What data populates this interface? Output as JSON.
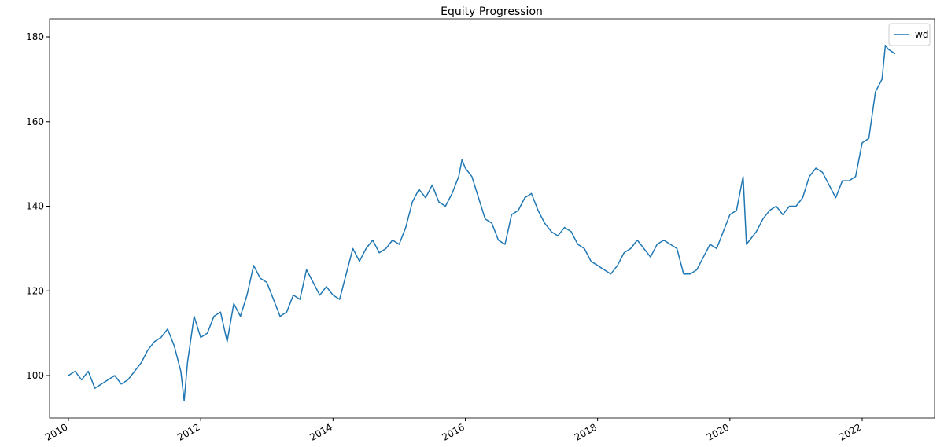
{
  "chart_data": {
    "type": "line",
    "title": "Equity Progression",
    "x": [
      2010.0,
      2010.1,
      2010.2,
      2010.3,
      2010.4,
      2010.5,
      2010.6,
      2010.7,
      2010.8,
      2010.9,
      2011.0,
      2011.1,
      2011.2,
      2011.3,
      2011.4,
      2011.5,
      2011.6,
      2011.7,
      2011.75,
      2011.8,
      2011.9,
      2012.0,
      2012.1,
      2012.2,
      2012.3,
      2012.4,
      2012.5,
      2012.6,
      2012.7,
      2012.8,
      2012.9,
      2013.0,
      2013.1,
      2013.2,
      2013.3,
      2013.4,
      2013.5,
      2013.6,
      2013.7,
      2013.8,
      2013.9,
      2014.0,
      2014.1,
      2014.2,
      2014.3,
      2014.4,
      2014.5,
      2014.6,
      2014.7,
      2014.8,
      2014.9,
      2015.0,
      2015.1,
      2015.2,
      2015.3,
      2015.4,
      2015.5,
      2015.6,
      2015.7,
      2015.8,
      2015.9,
      2015.95,
      2016.0,
      2016.1,
      2016.2,
      2016.3,
      2016.4,
      2016.5,
      2016.6,
      2016.7,
      2016.8,
      2016.9,
      2017.0,
      2017.1,
      2017.2,
      2017.3,
      2017.4,
      2017.5,
      2017.6,
      2017.7,
      2017.8,
      2017.9,
      2018.0,
      2018.1,
      2018.2,
      2018.3,
      2018.4,
      2018.5,
      2018.6,
      2018.7,
      2018.8,
      2018.9,
      2019.0,
      2019.1,
      2019.2,
      2019.3,
      2019.4,
      2019.5,
      2019.6,
      2019.7,
      2019.8,
      2019.9,
      2020.0,
      2020.1,
      2020.2,
      2020.25,
      2020.3,
      2020.4,
      2020.5,
      2020.6,
      2020.7,
      2020.8,
      2020.9,
      2021.0,
      2021.1,
      2021.2,
      2021.3,
      2021.4,
      2021.5,
      2021.6,
      2021.7,
      2021.8,
      2021.9,
      2022.0,
      2022.1,
      2022.2,
      2022.3,
      2022.35,
      2022.4,
      2022.5
    ],
    "series": [
      {
        "name": "wd",
        "color": "#1f77b4",
        "values": [
          100,
          101,
          99,
          101,
          97,
          98,
          99,
          100,
          98,
          99,
          101,
          103,
          106,
          108,
          109,
          111,
          107,
          101,
          94,
          103,
          114,
          109,
          110,
          114,
          115,
          108,
          117,
          114,
          119,
          126,
          123,
          122,
          118,
          114,
          115,
          119,
          118,
          125,
          122,
          119,
          121,
          119,
          118,
          124,
          130,
          127,
          130,
          132,
          129,
          130,
          132,
          131,
          135,
          141,
          144,
          142,
          145,
          141,
          140,
          143,
          147,
          151,
          149,
          147,
          142,
          137,
          136,
          132,
          131,
          138,
          139,
          142,
          143,
          139,
          136,
          134,
          133,
          135,
          134,
          131,
          130,
          127,
          126,
          125,
          124,
          126,
          129,
          130,
          132,
          130,
          128,
          131,
          132,
          131,
          130,
          124,
          124,
          125,
          128,
          131,
          130,
          134,
          138,
          139,
          147,
          131,
          132,
          134,
          137,
          139,
          140,
          138,
          140,
          140,
          142,
          147,
          149,
          148,
          145,
          142,
          146,
          146,
          147,
          155,
          156,
          167,
          170,
          178,
          177,
          176
        ]
      }
    ],
    "xlim": [
      2009.715,
      2023.094
    ],
    "xticks": [
      2010,
      2012,
      2014,
      2016,
      2018,
      2020,
      2022
    ],
    "ylim": [
      89.98,
      184.27
    ],
    "yticks": [
      100,
      120,
      140,
      160,
      180
    ],
    "grid": false,
    "legend": "upper right"
  }
}
